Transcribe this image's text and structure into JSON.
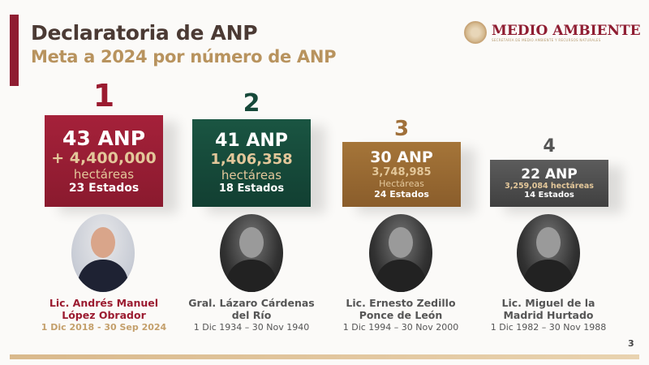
{
  "header": {
    "title": "Declaratoria de ANP",
    "subtitle": "Meta a 2024 por número de ANP"
  },
  "logo": {
    "name": "MEDIO AMBIENTE",
    "subtitle": "SECRETARÍA DE MEDIO AMBIENTE Y RECURSOS NATURALES"
  },
  "colors": {
    "rank1": "#9b1b30",
    "rank2": "#16493a",
    "rank3": "#9a6a35",
    "rank4": "#555555",
    "gold": "#b8935e"
  },
  "rankings": [
    {
      "rank": "1",
      "anp": "43 ANP",
      "hectares": "+ 4,400,000",
      "hectares_label": "hectáreas",
      "states": "23 Estados",
      "name_line1": "Lic. Andrés Manuel",
      "name_line2": "López Obrador",
      "dates": "1 Dic 2018 - 30 Sep 2024"
    },
    {
      "rank": "2",
      "anp": "41 ANP",
      "hectares": "1,406,358",
      "hectares_label": "hectáreas",
      "states": "18 Estados",
      "name_line1": "Gral. Lázaro Cárdenas",
      "name_line2": "del Río",
      "dates": "1 Dic 1934 – 30 Nov 1940"
    },
    {
      "rank": "3",
      "anp": "30 ANP",
      "hectares": "3,748,985",
      "hectares_label": "Hectáreas",
      "states": "24 Estados",
      "name_line1": "Lic. Ernesto Zedillo",
      "name_line2": "Ponce de León",
      "dates": "1 Dic 1994 – 30 Nov 2000"
    },
    {
      "rank": "4",
      "anp": "22 ANP",
      "hectares": "3,259,084 hectáreas",
      "states": "14 Estados",
      "name_line1": "Lic. Miguel de la",
      "name_line2": "Madrid Hurtado",
      "dates": "1 Dic 1982 – 30 Nov 1988"
    }
  ],
  "footer": {
    "page_number": "3"
  }
}
